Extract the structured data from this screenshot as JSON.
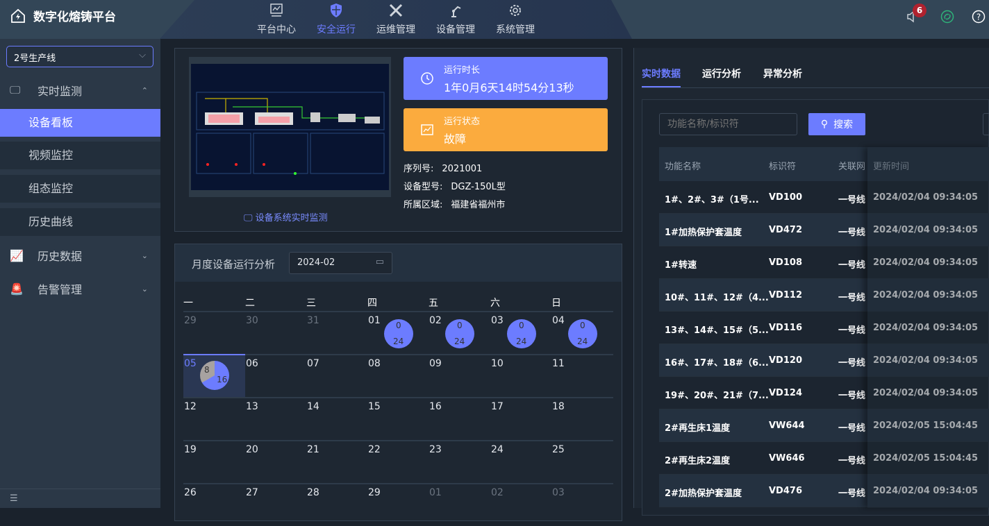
{
  "header": {
    "title": "数字化熔铸平台",
    "nav": [
      {
        "label": "平台中心",
        "icon": "monitor-icon"
      },
      {
        "label": "安全运行",
        "icon": "shield-icon",
        "active": true
      },
      {
        "label": "运维管理",
        "icon": "tools-icon"
      },
      {
        "label": "设备管理",
        "icon": "robot-arm-icon"
      },
      {
        "label": "系统管理",
        "icon": "gear-icon"
      }
    ],
    "notification_count": "6",
    "accent": "#6c7cff"
  },
  "sidebar": {
    "line_select": "2号生产线",
    "menu": [
      {
        "label": "实时监测",
        "icon": "monitor-clock-icon",
        "expanded": true,
        "children": [
          "设备看板",
          "视频监控",
          "组态监控",
          "历史曲线"
        ]
      },
      {
        "label": "历史数据",
        "icon": "chart-icon"
      },
      {
        "label": "告警管理",
        "icon": "alarm-icon"
      }
    ]
  },
  "device": {
    "link": "设备系统实时监测",
    "runtime_label": "运行时长",
    "runtime_value": "1年0月6天14时54分13秒",
    "status_label": "运行状态",
    "status_value": "故障",
    "serial_label": "序列号:",
    "serial": "2021001",
    "model_label": "设备型号:",
    "model": "DGZ-150L型",
    "area_label": "所属区域:",
    "area": "福建省福州市",
    "runtime_color": "#6c7cff",
    "status_color": "#fbab3e"
  },
  "calendar": {
    "title": "月度设备运行分析",
    "month": "2024-02",
    "weekdays": [
      "一",
      "二",
      "三",
      "四",
      "五",
      "六",
      "日"
    ],
    "days": [
      "29",
      "30",
      "31",
      "01",
      "02",
      "03",
      "04",
      "05",
      "06",
      "07",
      "08",
      "09",
      "10",
      "11",
      "12",
      "13",
      "14",
      "15",
      "16",
      "17",
      "18",
      "19",
      "20",
      "21",
      "22",
      "23",
      "24",
      "25",
      "26",
      "27",
      "28",
      "29",
      "01",
      "02",
      "03"
    ],
    "pies": {
      "01": [
        "0",
        "24"
      ],
      "02": [
        "0",
        "24"
      ],
      "03": [
        "0",
        "24"
      ],
      "04": [
        "0",
        "24"
      ],
      "05": [
        "8",
        "16"
      ]
    }
  },
  "realtime": {
    "tabs": [
      "实时数据",
      "运行分析",
      "异常分析"
    ],
    "search_placeholder": "功能名称/标识符",
    "search_label": "搜索",
    "columns": [
      "功能名称",
      "标识符",
      "关联网",
      "更新时间"
    ],
    "rows": [
      [
        "1#、2#、3#（1号...",
        "VD100",
        "一号线",
        "2024/02/04 09:34:05"
      ],
      [
        "1#加热保护套温度",
        "VD472",
        "一号线",
        "2024/02/04 09:34:05"
      ],
      [
        "1#转速",
        "VD108",
        "一号线",
        "2024/02/04 09:34:05"
      ],
      [
        "10#、11#、12#（4...",
        "VD112",
        "一号线",
        "2024/02/04 09:34:05"
      ],
      [
        "13#、14#、15#（5...",
        "VD116",
        "一号线",
        "2024/02/04 09:34:05"
      ],
      [
        "16#、17#、18#（6...",
        "VD120",
        "一号线",
        "2024/02/04 09:34:05"
      ],
      [
        "19#、20#、21#（7...",
        "VD124",
        "一号线",
        "2024/02/04 09:34:05"
      ],
      [
        "2#再生床1温度",
        "VW644",
        "一号线",
        "2024/02/05 15:04:45"
      ],
      [
        "2#再生床2温度",
        "VW646",
        "一号线",
        "2024/02/05 15:04:45"
      ],
      [
        "2#加热保护套温度",
        "VD476",
        "一号线",
        "2024/02/04 09:34:05"
      ]
    ]
  }
}
